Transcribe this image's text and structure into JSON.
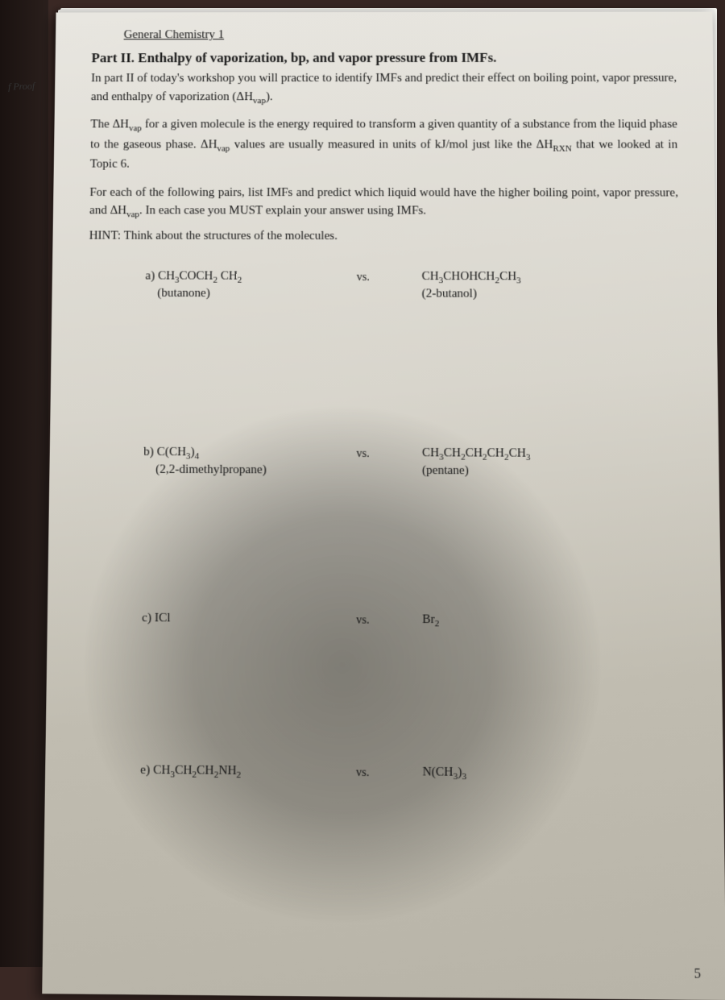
{
  "course_header": "General Chemistry 1",
  "left_margin_label": "f Proof",
  "part_title": "Part II. Enthalpy of vaporization, bp, and vapor pressure from IMFs.",
  "intro_line1": "In part II of today's workshop you will practice to identify IMFs and predict their effect on boiling point, vapor pressure, and enthalpy of vaporization (ΔHvap).",
  "definition": "The ΔHvap for a given molecule is the energy required to transform a given quantity of a substance from the liquid phase to the gaseous phase. ΔHvap values are usually measured in units of kJ/mol just like the ΔHRXN that we looked at in Topic 6.",
  "task": "For each of the following pairs, list IMFs and predict which liquid would have the higher boiling point, vapor pressure, and ΔHvap. In each case you MUST explain your answer using IMFs.",
  "hint": "HINT: Think about the structures of the molecules.",
  "vs_label": "vs.",
  "questions": {
    "a": {
      "letter": "a)",
      "left_formula": "CH₃COCH₂ CH₂",
      "left_name": "(butanone)",
      "right_formula": "CH₃CHOHCH₂CH₃",
      "right_name": "(2-butanol)"
    },
    "b": {
      "letter": "b)",
      "left_formula": "C(CH₃)₄",
      "left_name": "(2,2-dimethylpropane)",
      "right_formula": "CH₃CH₂CH₂CH₂CH₃",
      "right_name": "(pentane)"
    },
    "c": {
      "letter": "c)",
      "left_formula": "ICl",
      "left_name": "",
      "right_formula": "Br₂",
      "right_name": ""
    },
    "e": {
      "letter": "e)",
      "left_formula": "CH₃CH₂CH₂NH₂",
      "left_name": "",
      "right_formula": "N(CH₃)₃",
      "right_name": ""
    }
  },
  "page_number": "5",
  "colors": {
    "paper_bg_top": "#e8e6e0",
    "paper_bg_bottom": "#b8b4a8",
    "text_color": "#1a1a1a",
    "background": "#2a1f1c"
  },
  "typography": {
    "body_fontsize": 15,
    "title_fontsize": 17,
    "font_family": "Times New Roman"
  }
}
